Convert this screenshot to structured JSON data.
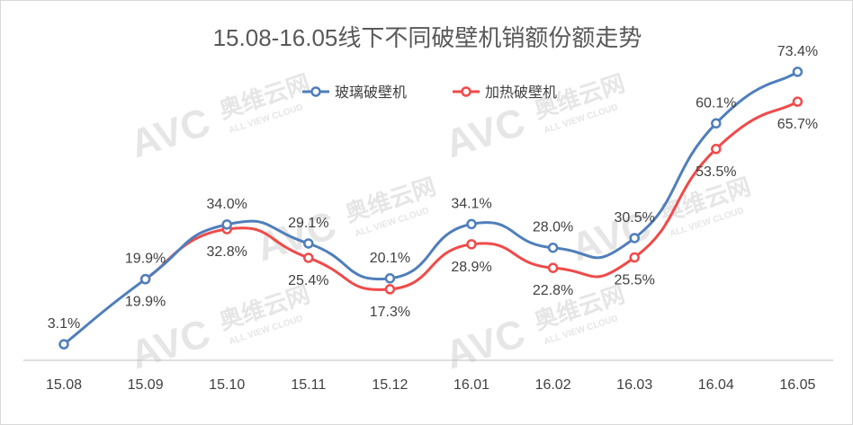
{
  "chart_data": {
    "type": "line",
    "title": "15.08-16.05线下不同破壁机销额份额走势",
    "categories": [
      "15.08",
      "15.09",
      "15.10",
      "15.11",
      "15.12",
      "16.01",
      "16.02",
      "16.03",
      "16.04",
      "16.05"
    ],
    "series": [
      {
        "name": "玻璃破壁机",
        "color": "#4f7ebb",
        "values": [
          3.1,
          19.9,
          34.0,
          29.1,
          20.1,
          34.1,
          28.0,
          30.5,
          60.1,
          73.4
        ],
        "labels": [
          "3.1%",
          "19.9%",
          "34.0%",
          "29.1%",
          "20.1%",
          "34.1%",
          "28.0%",
          "30.5%",
          "60.1%",
          "73.4%"
        ]
      },
      {
        "name": "加热破壁机",
        "color": "#f04a4a",
        "values": [
          null,
          19.9,
          32.8,
          25.4,
          17.3,
          28.9,
          22.8,
          25.5,
          53.5,
          65.7
        ],
        "labels": [
          null,
          "19.9%",
          "32.8%",
          "25.4%",
          "17.3%",
          "28.9%",
          "22.8%",
          "25.5%",
          "53.5%",
          "65.7%"
        ]
      }
    ],
    "xlabel": "",
    "ylabel": "",
    "ylim": [
      0,
      80
    ],
    "grid": false,
    "legend_position": "top-center",
    "watermark": {
      "logo": "AVC",
      "brand": "奥维云网",
      "tagline": "ALL VIEW CLOUD"
    }
  }
}
